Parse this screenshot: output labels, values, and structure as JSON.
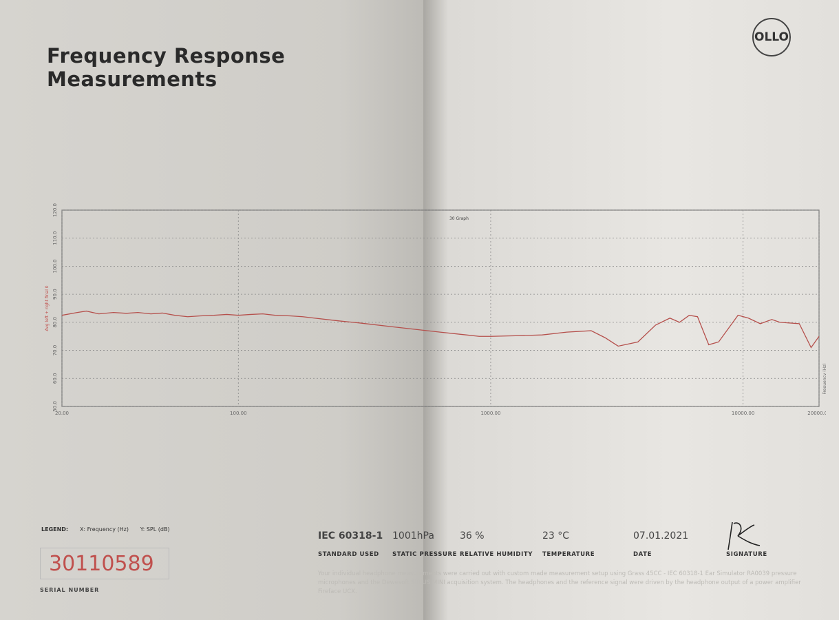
{
  "header": {
    "title_line1": "Frequency Response",
    "title_line2": "Measurements",
    "logo": "OLLO"
  },
  "chart_data": {
    "type": "line",
    "title": "",
    "top_label": "30 Graph",
    "xlabel": "Frequency (Hz)",
    "ylabel": "Avg left + right final 0",
    "xscale": "log",
    "xlim": [
      20,
      20000
    ],
    "ylim": [
      50,
      120
    ],
    "grid": true,
    "x_ticks": [
      "20.00",
      "100.00",
      "1000.00",
      "10000.00",
      "20000.00"
    ],
    "x_tick_values": [
      20,
      100,
      1000,
      10000,
      20000
    ],
    "y_ticks": [
      "50.0",
      "60.0",
      "70.0",
      "80.0",
      "90.0",
      "100.0",
      "110.0",
      "120.0"
    ],
    "line_color": "#b5504c",
    "series": [
      {
        "x": [
          20,
          23,
          25,
          28,
          32,
          36,
          40,
          45,
          50,
          56,
          63,
          71,
          80,
          90,
          100,
          112,
          125,
          140,
          160,
          180,
          200,
          250,
          300,
          400,
          500,
          630,
          800,
          900,
          1000,
          1250,
          1600,
          2000,
          2500,
          2840,
          3200,
          3830,
          4500,
          5130,
          5600,
          6120,
          6600,
          7310,
          8000,
          9550,
          10500,
          11700,
          13000,
          14000,
          16700,
          18600,
          20000
        ],
        "y": [
          82.5,
          83.5,
          84,
          83,
          83.5,
          83.2,
          83.5,
          83,
          83.3,
          82.5,
          82,
          82.3,
          82.5,
          82.8,
          82.5,
          82.8,
          83,
          82.5,
          82.3,
          82,
          81.5,
          80.5,
          79.8,
          78.5,
          77.5,
          76.5,
          75.5,
          75,
          75,
          75.2,
          75.5,
          76.5,
          77,
          74.5,
          71.5,
          73,
          79,
          81.5,
          80,
          82.5,
          82,
          72,
          73,
          82.5,
          81.5,
          79.5,
          81,
          80,
          79.5,
          71,
          75
        ]
      }
    ]
  },
  "legend": {
    "label": "LEGEND:",
    "x": "X: Frequency (Hz)",
    "y": "Y: SPL (dB)"
  },
  "serial": {
    "value": "30110589",
    "label": "SERIAL NUMBER"
  },
  "info": [
    {
      "value": "IEC 60318-1",
      "label": "STANDARD USED"
    },
    {
      "value": "1001hPa",
      "label": "STATIC PRESSURE"
    },
    {
      "value": "36 %",
      "label": "RELATIVE HUMIDITY"
    },
    {
      "value": "23 °C",
      "label": "TEMPERATURE"
    },
    {
      "value": "07.01.2021",
      "label": "DATE"
    },
    {
      "value": "",
      "label": "SIGNATURE"
    }
  ],
  "signature": "DR",
  "fine_print": "Your individual headphone measurements were carried out with custom made measurement setup using Grass 45CC - IEC 60318-1 Ear Simulator RA0039 pressure microphones and the Dewesoft SIRIUS MINI acquisition system. The headphones and the reference signal were driven by the headphone output of a power amplifier Fireface UCX."
}
